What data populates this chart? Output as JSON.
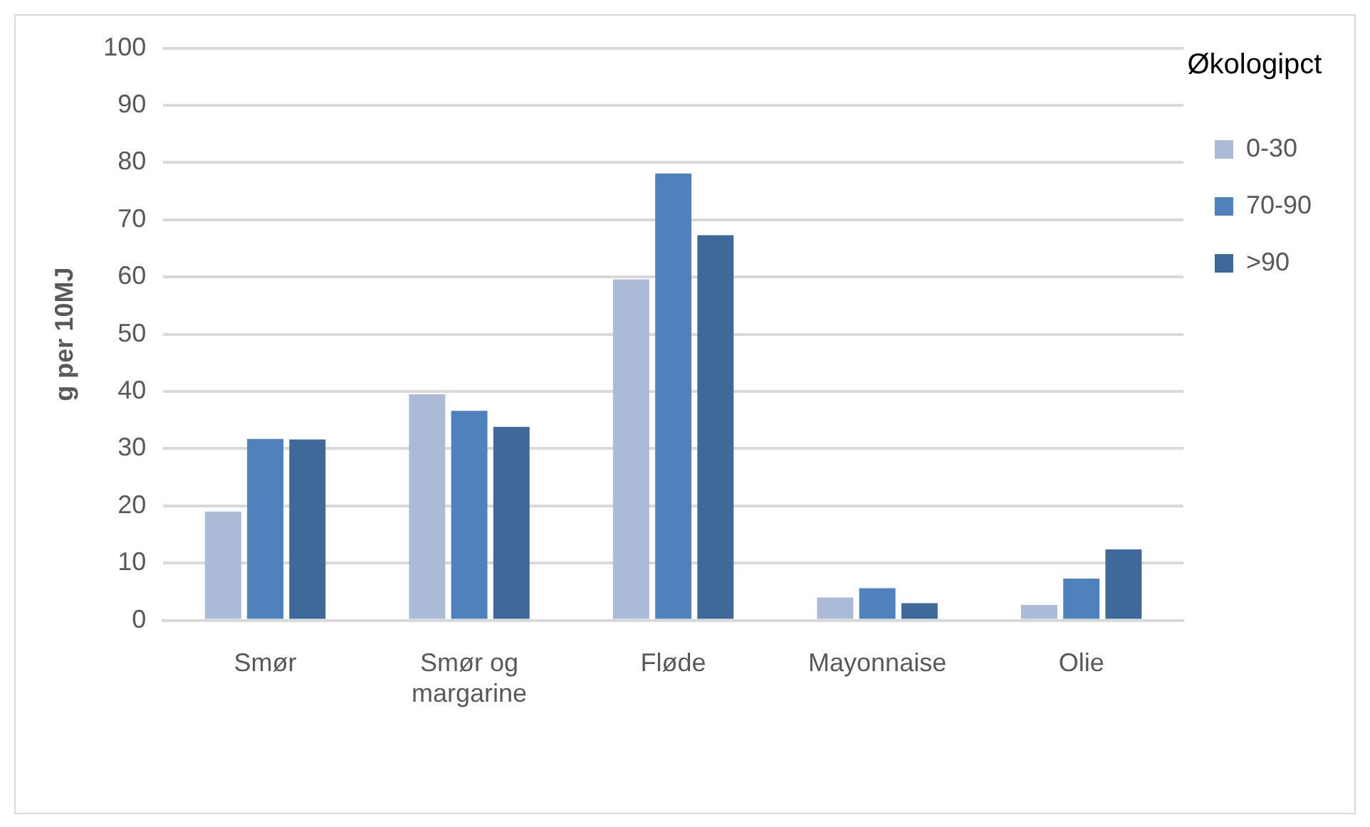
{
  "chart_data": {
    "type": "bar",
    "ylabel": "g per 10MJ",
    "legend_title": "Økologipct",
    "categories": [
      "Smør",
      "Smør og margarine",
      "Fløde",
      "Mayonnaise",
      "Olie"
    ],
    "series": [
      {
        "name": "0-30",
        "color": "#abbad7",
        "values": [
          19,
          39.5,
          59.6,
          4,
          2.7
        ]
      },
      {
        "name": "70-90",
        "color": "#4f81bd",
        "values": [
          31.7,
          36.6,
          78.1,
          5.6,
          7.3
        ]
      },
      {
        "name": ">90",
        "color": "#3f6999",
        "values": [
          31.6,
          33.8,
          67.3,
          3,
          12.4
        ]
      }
    ],
    "ylim": [
      0,
      100
    ],
    "yticks": [
      0,
      10,
      20,
      30,
      40,
      50,
      60,
      70,
      80,
      90,
      100
    ],
    "grid": "y",
    "legend": "right"
  }
}
